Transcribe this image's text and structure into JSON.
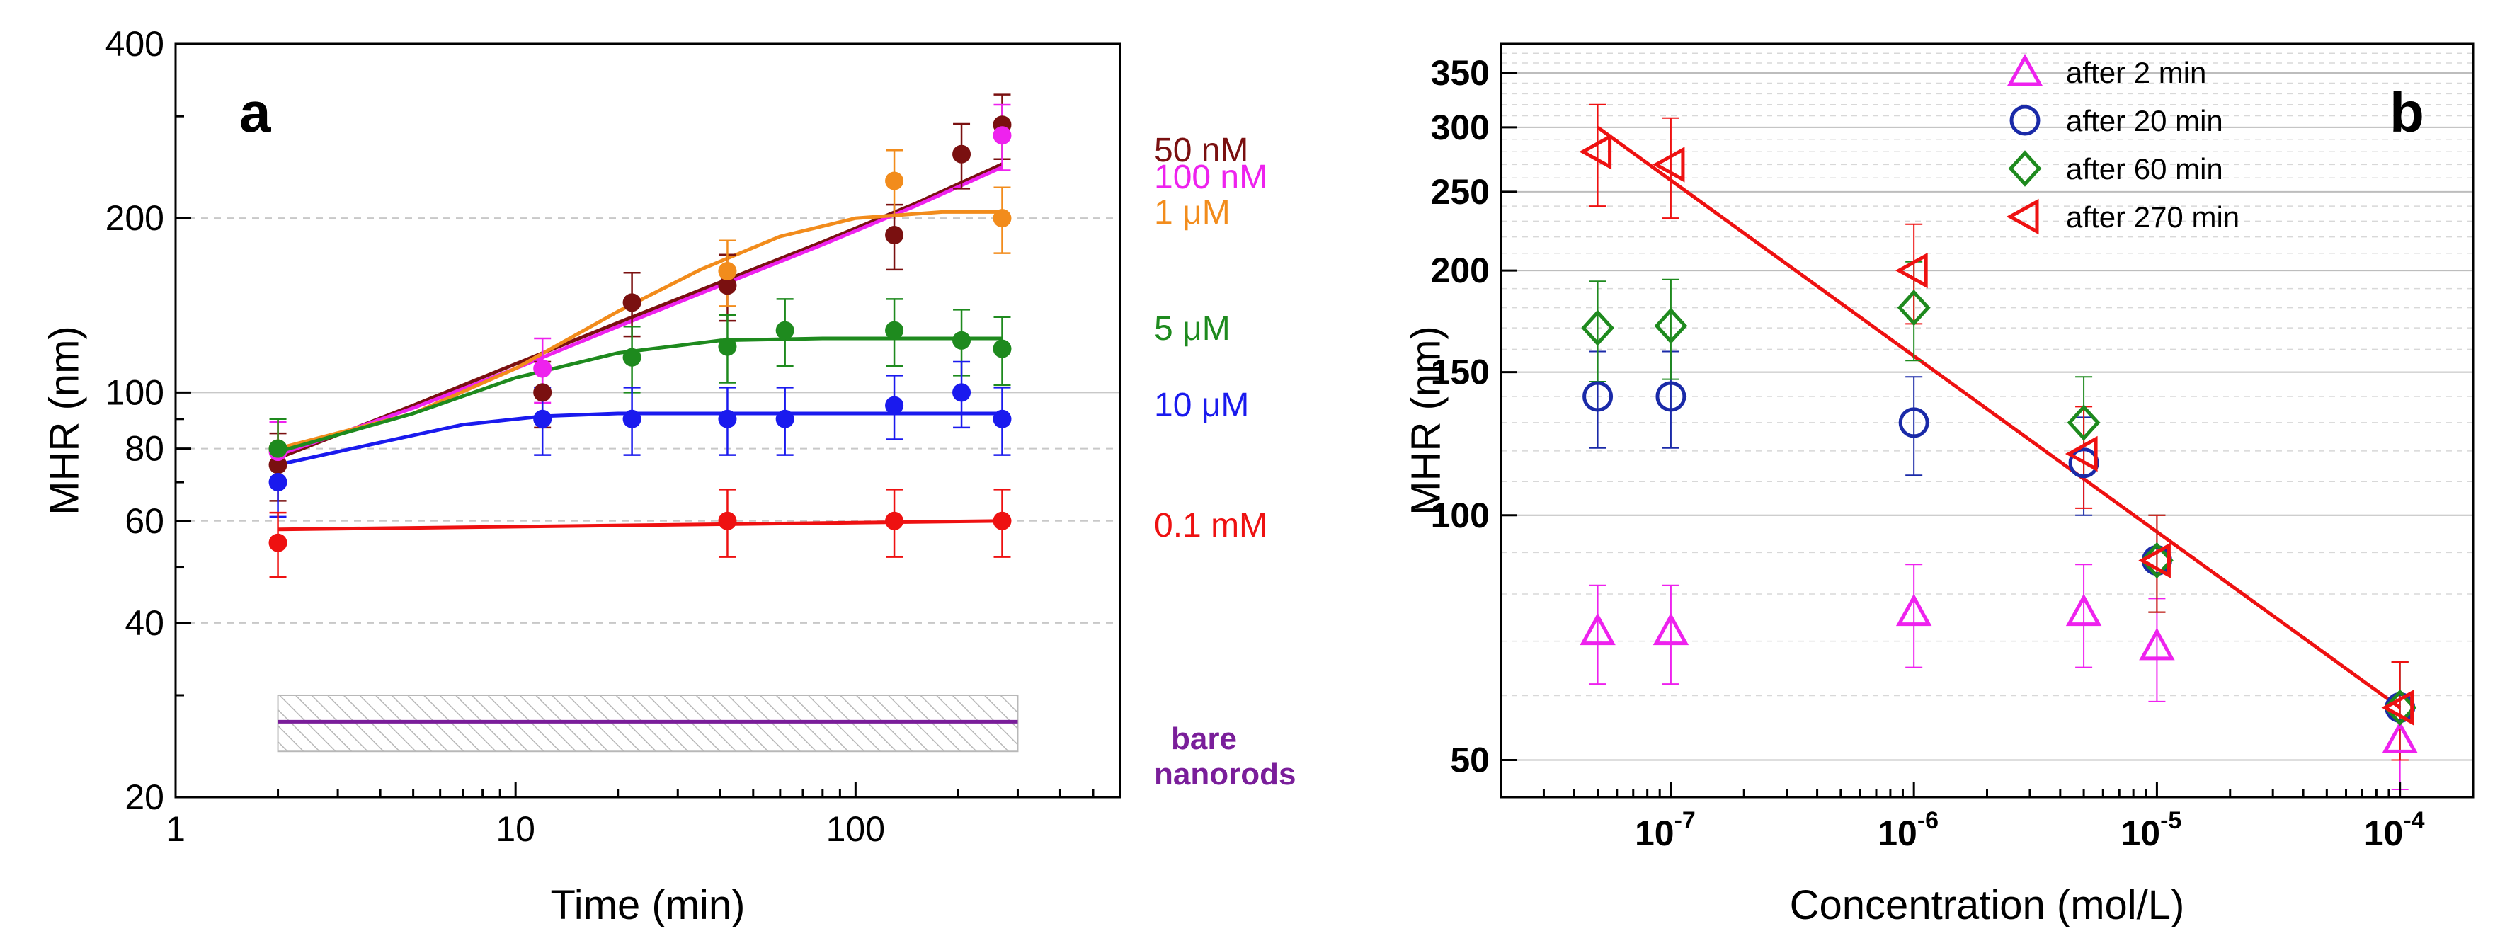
{
  "chart_data": [
    {
      "panel_label": "a",
      "type": "scatter",
      "title": "",
      "xlabel": "Time (min)",
      "ylabel": "MHR (nm)",
      "xscale": "log",
      "yscale": "log",
      "xlim": [
        1,
        600
      ],
      "ylim": [
        20,
        400
      ],
      "xticks": [
        1,
        10,
        100
      ],
      "xtick_labels": [
        "1",
        "10",
        "100"
      ],
      "yticks": [
        20,
        40,
        60,
        80,
        100,
        200,
        400
      ],
      "ytick_labels": [
        "20",
        "40",
        "60",
        "80",
        "100",
        "200",
        "400"
      ],
      "grid": true,
      "series": [
        {
          "name": "50 nM",
          "color": "#7a1010",
          "points": [
            {
              "x": 2,
              "y": 75,
              "err": 10
            },
            {
              "x": 12,
              "y": 100,
              "err": 13
            },
            {
              "x": 22,
              "y": 143,
              "err": 18
            },
            {
              "x": 42,
              "y": 153,
              "err": 20
            },
            {
              "x": 130,
              "y": 187,
              "err": 24
            },
            {
              "x": 205,
              "y": 258,
              "err": 33
            },
            {
              "x": 270,
              "y": 290,
              "err": 37
            }
          ],
          "fit": [
            [
              2,
              77
            ],
            [
              5,
              95
            ],
            [
              10,
              112
            ],
            [
              20,
              132
            ],
            [
              40,
              155
            ],
            [
              80,
              182
            ],
            [
              150,
              212
            ],
            [
              270,
              248
            ]
          ]
        },
        {
          "name": "100 nM",
          "color": "#ee22ee",
          "points": [
            {
              "x": 2,
              "y": 79,
              "err": 10
            },
            {
              "x": 12,
              "y": 110,
              "err": 14
            },
            {
              "x": 270,
              "y": 278,
              "err": 36
            }
          ],
          "fit": [
            [
              2,
              78
            ],
            [
              5,
              94
            ],
            [
              10,
              110
            ],
            [
              20,
              130
            ],
            [
              40,
              153
            ],
            [
              80,
              180
            ],
            [
              150,
              210
            ],
            [
              270,
              245
            ]
          ]
        },
        {
          "name": "1 μM",
          "color": "#f28c1c",
          "points": [
            {
              "x": 2,
              "y": 80,
              "err": 10
            },
            {
              "x": 42,
              "y": 162,
              "err": 21
            },
            {
              "x": 130,
              "y": 232,
              "err": 30
            },
            {
              "x": 270,
              "y": 200,
              "err": 26
            }
          ],
          "fit": [
            [
              2,
              80
            ],
            [
              5,
              92
            ],
            [
              10,
              110
            ],
            [
              20,
              138
            ],
            [
              35,
              163
            ],
            [
              60,
              186
            ],
            [
              100,
              200
            ],
            [
              180,
              205
            ],
            [
              270,
              205
            ]
          ]
        },
        {
          "name": "5 μM",
          "color": "#1e8a1e",
          "points": [
            {
              "x": 2,
              "y": 80,
              "err": 10
            },
            {
              "x": 22,
              "y": 115,
              "err": 15
            },
            {
              "x": 42,
              "y": 120,
              "err": 16
            },
            {
              "x": 62,
              "y": 128,
              "err": 17
            },
            {
              "x": 130,
              "y": 128,
              "err": 17
            },
            {
              "x": 205,
              "y": 123,
              "err": 16
            },
            {
              "x": 270,
              "y": 119,
              "err": 16
            }
          ],
          "fit": [
            [
              2,
              79
            ],
            [
              5,
              92
            ],
            [
              10,
              106
            ],
            [
              20,
              117
            ],
            [
              40,
              123
            ],
            [
              80,
              124
            ],
            [
              270,
              124
            ]
          ]
        },
        {
          "name": "10 μM",
          "color": "#1a1aee",
          "points": [
            {
              "x": 2,
              "y": 70,
              "err": 9
            },
            {
              "x": 12,
              "y": 90,
              "err": 12
            },
            {
              "x": 22,
              "y": 90,
              "err": 12
            },
            {
              "x": 42,
              "y": 90,
              "err": 12
            },
            {
              "x": 62,
              "y": 90,
              "err": 12
            },
            {
              "x": 130,
              "y": 95,
              "err": 12
            },
            {
              "x": 205,
              "y": 100,
              "err": 13
            },
            {
              "x": 270,
              "y": 90,
              "err": 12
            }
          ],
          "fit": [
            [
              2,
              75
            ],
            [
              4,
              82
            ],
            [
              7,
              88
            ],
            [
              12,
              91
            ],
            [
              20,
              92
            ],
            [
              270,
              92
            ]
          ]
        },
        {
          "name": "0.1 mM",
          "color": "#ee1111",
          "points": [
            {
              "x": 2,
              "y": 55,
              "err": 7
            },
            {
              "x": 42,
              "y": 60,
              "err": 8
            },
            {
              "x": 130,
              "y": 60,
              "err": 8
            },
            {
              "x": 270,
              "y": 60,
              "err": 8
            }
          ],
          "fit": [
            [
              2,
              58
            ],
            [
              270,
              60
            ]
          ]
        }
      ],
      "band": {
        "label_line1": "bare",
        "label_line2": "nanorods",
        "color": "#7a1e9a",
        "x_range": [
          2,
          300
        ],
        "y_center": 27,
        "y_range": [
          24,
          30
        ]
      }
    },
    {
      "panel_label": "b",
      "type": "scatter",
      "title": "",
      "xlabel": "Concentration (mol/L)",
      "ylabel": "MHR (nm)",
      "xscale": "log",
      "yscale": "log",
      "xlim": [
        2e-08,
        0.0002
      ],
      "ylim": [
        45,
        380
      ],
      "xticks": [
        1e-07,
        1e-06,
        1e-05,
        0.0001
      ],
      "xtick_exponents": [
        "-7",
        "-6",
        "-5",
        "-4"
      ],
      "xtick_base": "10",
      "yticks": [
        50,
        100,
        150,
        200,
        250,
        300,
        350
      ],
      "ytick_labels": [
        "50",
        "100",
        "150",
        "200",
        "250",
        "300",
        "350"
      ],
      "grid": true,
      "legend_position": "top-center",
      "series": [
        {
          "name": "after 2 min",
          "marker": "triangle-up",
          "color": "#ee22ee",
          "points": [
            {
              "x": 5e-08,
              "y": 72,
              "err": 10
            },
            {
              "x": 1e-07,
              "y": 72,
              "err": 10
            },
            {
              "x": 1e-06,
              "y": 76,
              "err": 11
            },
            {
              "x": 5e-06,
              "y": 76,
              "err": 11
            },
            {
              "x": 1e-05,
              "y": 69,
              "err": 10
            },
            {
              "x": 0.0001,
              "y": 53,
              "err": 7
            }
          ]
        },
        {
          "name": "after 20 min",
          "marker": "circle",
          "color": "#1a2aa8",
          "points": [
            {
              "x": 5e-08,
              "y": 140,
              "err": 19
            },
            {
              "x": 1e-07,
              "y": 140,
              "err": 19
            },
            {
              "x": 1e-06,
              "y": 130,
              "err": 18
            },
            {
              "x": 5e-06,
              "y": 116,
              "err": 16
            },
            {
              "x": 1e-05,
              "y": 88,
              "err": 12
            },
            {
              "x": 0.0001,
              "y": 58,
              "err": 8
            }
          ]
        },
        {
          "name": "after 60 min",
          "marker": "diamond",
          "color": "#1e8a1e",
          "points": [
            {
              "x": 5e-08,
              "y": 170,
              "err": 24
            },
            {
              "x": 1e-07,
              "y": 171,
              "err": 24
            },
            {
              "x": 1e-06,
              "y": 180,
              "err": 25
            },
            {
              "x": 5e-06,
              "y": 130,
              "err": 18
            },
            {
              "x": 1e-05,
              "y": 88,
              "err": 12
            },
            {
              "x": 0.0001,
              "y": 58,
              "err": 8
            }
          ]
        },
        {
          "name": "after 270 min",
          "marker": "triangle-left",
          "color": "#ee1111",
          "points": [
            {
              "x": 5e-08,
              "y": 280,
              "err": 40
            },
            {
              "x": 1e-07,
              "y": 270,
              "err": 38
            },
            {
              "x": 1e-06,
              "y": 200,
              "err": 28
            },
            {
              "x": 5e-06,
              "y": 119,
              "err": 17
            },
            {
              "x": 1e-05,
              "y": 88,
              "err": 12
            },
            {
              "x": 0.0001,
              "y": 58,
              "err": 8
            }
          ]
        }
      ],
      "fit": {
        "color": "#ee1111",
        "points": [
          [
            5e-08,
            300
          ],
          [
            0.0001,
            58
          ]
        ]
      }
    }
  ]
}
